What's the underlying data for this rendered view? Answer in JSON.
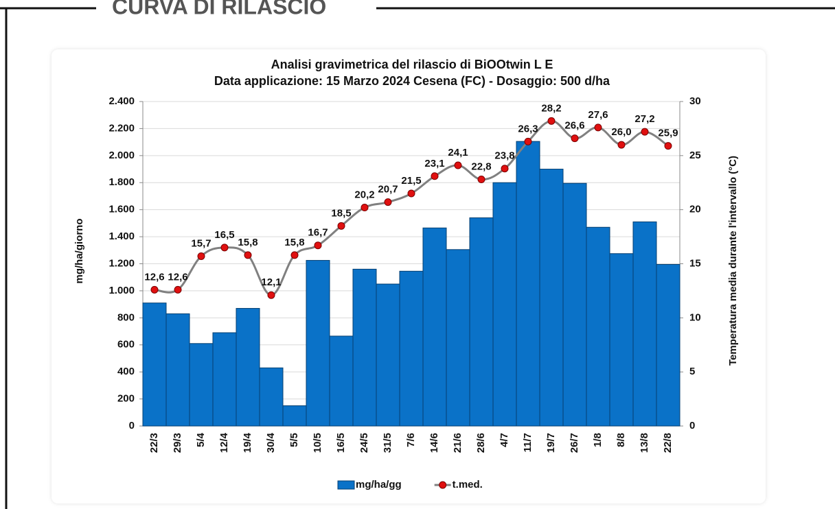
{
  "heading": "CURVA DI RILASCIO",
  "chart_data": {
    "type": "bar",
    "title": "Analisi gravimetrica del rilascio di BiOOtwin L E",
    "subtitle": "Data applicazione: 15 Marzo 2024 Cesena (FC) - Dosaggio: 500 d/ha",
    "ylabel": "mg/ha/giorno",
    "y2label": "Temperatura media durante l'intervallo (°C)",
    "categories": [
      "22/3",
      "29/3",
      "5/4",
      "12/4",
      "19/4",
      "30/4",
      "5/5",
      "10/5",
      "16/5",
      "24/5",
      "31/5",
      "7/6",
      "14/6",
      "21/6",
      "28/6",
      "4/7",
      "11/7",
      "19/7",
      "26/7",
      "1/8",
      "8/8",
      "13/8",
      "22/8"
    ],
    "series": [
      {
        "name": "mg/ha/gg",
        "type": "bar",
        "color": "#0a72c8",
        "values": [
          910,
          830,
          610,
          690,
          870,
          430,
          150,
          1225,
          665,
          1160,
          1050,
          1145,
          1465,
          1305,
          1540,
          1800,
          2105,
          1900,
          1795,
          1470,
          1275,
          1510,
          1195
        ]
      },
      {
        "name": "t.med.",
        "type": "line",
        "axis": "y2",
        "color": "#808080",
        "marker_color": "#e01010",
        "values": [
          12.6,
          12.6,
          15.7,
          16.5,
          15.8,
          12.1,
          15.8,
          16.7,
          18.5,
          20.2,
          20.7,
          21.5,
          23.1,
          24.1,
          22.8,
          23.8,
          26.3,
          28.2,
          26.6,
          27.6,
          26.0,
          27.2,
          25.9
        ],
        "value_labels": [
          "12,6",
          "12,6",
          "15,7",
          "16,5",
          "15,8",
          "12,1",
          "15,8",
          "16,7",
          "18,5",
          "20,2",
          "20,7",
          "21,5",
          "23,1",
          "24,1",
          "22,8",
          "23,8",
          "26,3",
          "28,2",
          "26,6",
          "27,6",
          "26,0",
          "27,2",
          "25,9"
        ]
      }
    ],
    "ylim": [
      0,
      2400
    ],
    "yticks": [
      0,
      200,
      400,
      600,
      800,
      {
        "value": 1000,
        "label": "1.000"
      },
      {
        "value": 1200,
        "label": "1.200"
      },
      {
        "value": 1400,
        "label": "1.400"
      },
      {
        "value": 1600,
        "label": "1.600"
      },
      {
        "value": 1800,
        "label": "1.800"
      },
      {
        "value": 2000,
        "label": "2.000"
      },
      {
        "value": 2200,
        "label": "2.200"
      },
      {
        "value": 2400,
        "label": "2.400"
      }
    ],
    "y2lim": [
      0,
      30
    ],
    "y2ticks": [
      0,
      5,
      10,
      15,
      20,
      25,
      30
    ],
    "grid": true,
    "legend": "bottom"
  }
}
